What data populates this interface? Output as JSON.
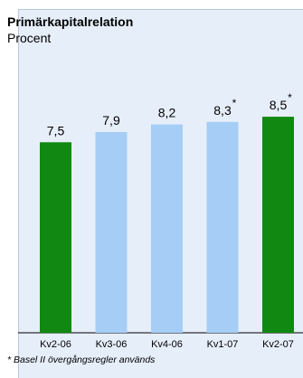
{
  "chart_data": {
    "type": "bar",
    "title": "Primärkapitalrelation",
    "subtitle": "Procent",
    "categories": [
      "Kv2-06",
      "Kv3-06",
      "Kv4-06",
      "Kv1-07",
      "Kv2-07"
    ],
    "values": [
      7.5,
      7.9,
      8.2,
      8.3,
      8.5
    ],
    "value_labels": [
      "7,5",
      "7,9",
      "8,2",
      "8,3",
      "8,5"
    ],
    "asterisks": [
      "",
      "",
      "",
      "*",
      "*"
    ],
    "bar_colors": [
      "#118811",
      "#a6cdf5",
      "#a6cdf5",
      "#a6cdf5",
      "#118811"
    ],
    "footnote": "* Basel II övergångsregler används",
    "background_color": "#e6eefa",
    "grid": false,
    "legend": "none"
  }
}
